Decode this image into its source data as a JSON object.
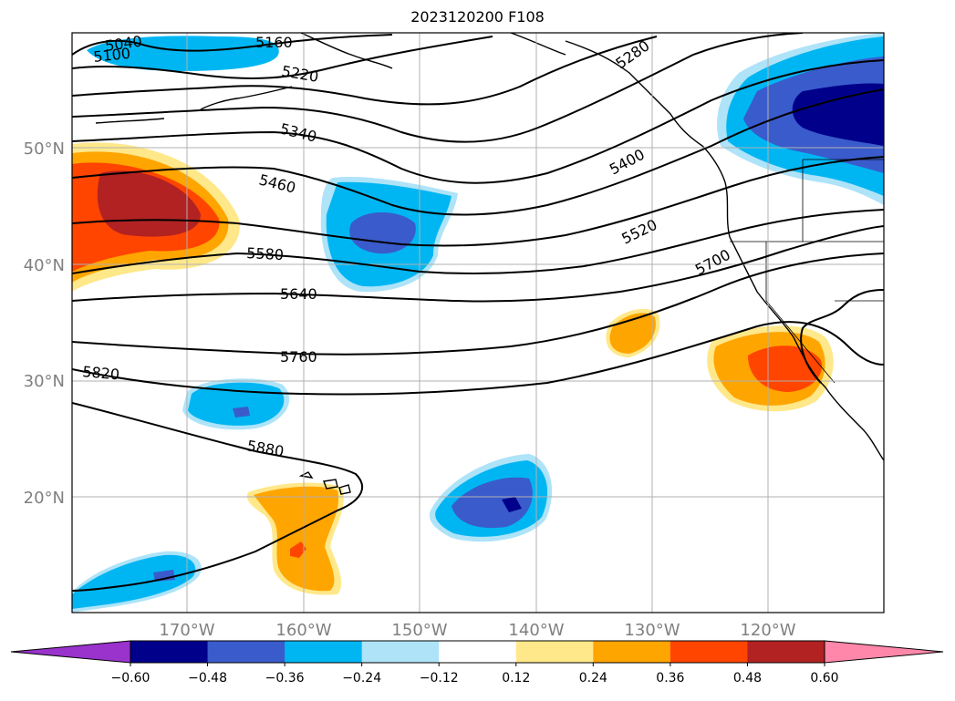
{
  "title": "2023120200 F108",
  "map": {
    "lat_labels": [
      "50°N",
      "40°N",
      "30°N",
      "20°N"
    ],
    "lon_labels": [
      "170°W",
      "160°W",
      "150°W",
      "140°W",
      "130°W",
      "120°W"
    ],
    "grid": true,
    "contour_labels": [
      "5040",
      "5100",
      "5160",
      "5220",
      "5280",
      "5340",
      "5400",
      "5460",
      "5520",
      "5580",
      "5640",
      "5700",
      "5760",
      "5820",
      "5880"
    ]
  },
  "colorbar": {
    "ticks": [
      "−0.60",
      "−0.48",
      "−0.36",
      "−0.24",
      "−0.12",
      "0.12",
      "0.24",
      "0.36",
      "0.48",
      "0.60"
    ],
    "colors": [
      "#9933cc",
      "#00008b",
      "#3a5bcc",
      "#00b6f2",
      "#aee3f8",
      "#ffffff",
      "#ffe88a",
      "#ffa500",
      "#ff4500",
      "#b22222",
      "#ff88aa"
    ]
  }
}
